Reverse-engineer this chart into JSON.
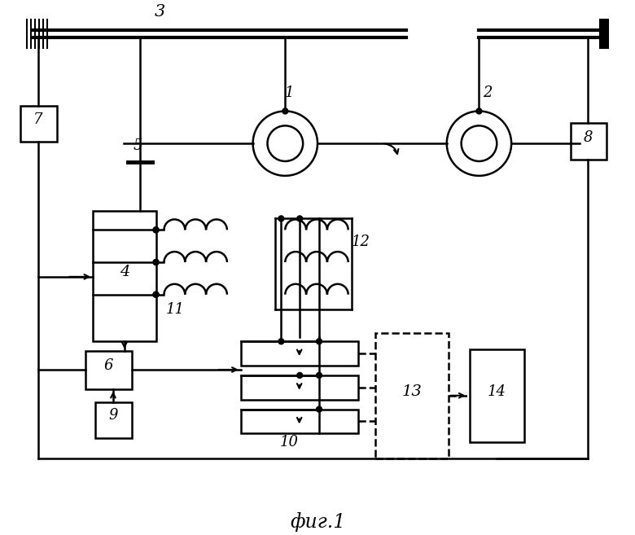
{
  "bg_color": "#ffffff",
  "line_color": "#000000",
  "title": "фиг.1",
  "fig_width": 7.8,
  "fig_height": 6.57,
  "dpi": 100
}
